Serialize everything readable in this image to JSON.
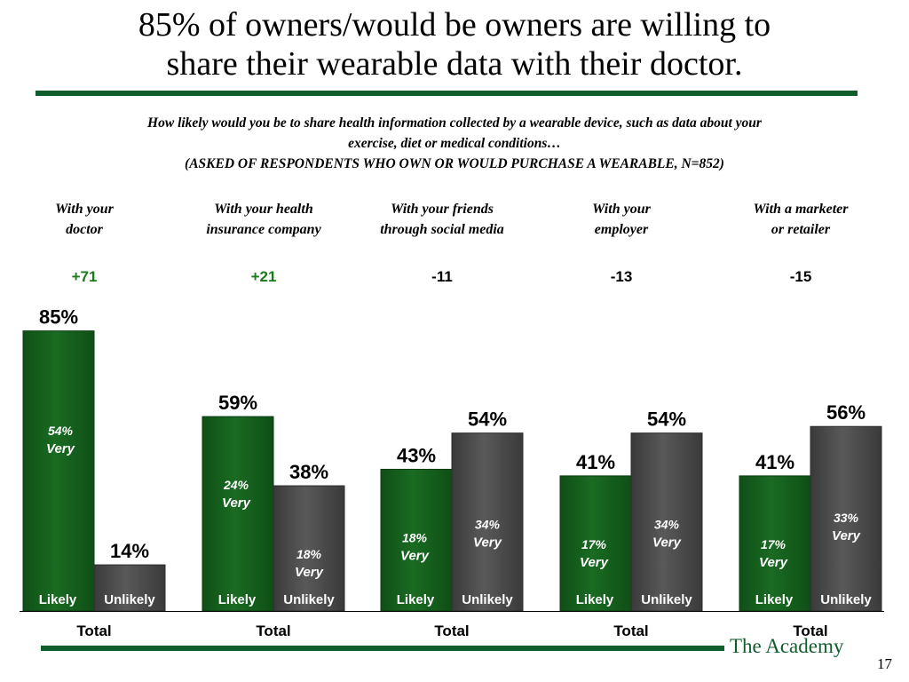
{
  "title_line1": "85% of owners/would be owners are willing to",
  "title_line2": "share their wearable data with their doctor.",
  "question_line1": "How likely would you be to share health information collected by a wearable device, such as data about your",
  "question_line2": "exercise, diet or medical conditions…",
  "question_line3": "(ASKED OF RESPONDENTS WHO OWN OR WOULD PURCHASE A WEARABLE, N=852)",
  "footer": {
    "brand": "The Academy",
    "page_number": "17"
  },
  "colors": {
    "likely": "#1a6b23",
    "unlikely": "#595959",
    "positive_net": "#1a7a1a",
    "negative_net": "#000000",
    "rule": "#0e5d2b"
  },
  "chart_data": {
    "type": "bar",
    "ylim": [
      0,
      100
    ],
    "series_names": [
      "Likely",
      "Unlikely"
    ],
    "groups": [
      {
        "header": [
          "With your",
          "doctor"
        ],
        "net": "+71",
        "likely": 85,
        "unlikely": 14,
        "likely_very": 54,
        "unlikely_very": null,
        "category": "Total"
      },
      {
        "header": [
          "With your health",
          "insurance company"
        ],
        "net": "+21",
        "likely": 59,
        "unlikely": 38,
        "likely_very": 24,
        "unlikely_very": 18,
        "category": "Total"
      },
      {
        "header": [
          "With your friends",
          "through social media"
        ],
        "net": "-11",
        "likely": 43,
        "unlikely": 54,
        "likely_very": 18,
        "unlikely_very": 34,
        "category": "Total"
      },
      {
        "header": [
          "With your",
          "employer"
        ],
        "net": "-13",
        "likely": 41,
        "unlikely": 54,
        "likely_very": 17,
        "unlikely_very": 34,
        "category": "Total"
      },
      {
        "header": [
          "With a marketer",
          "or retailer"
        ],
        "net": "-15",
        "likely": 41,
        "unlikely": 56,
        "likely_very": 17,
        "unlikely_very": 33,
        "category": "Total"
      }
    ],
    "very_label": "Very",
    "value_suffix": "%"
  }
}
